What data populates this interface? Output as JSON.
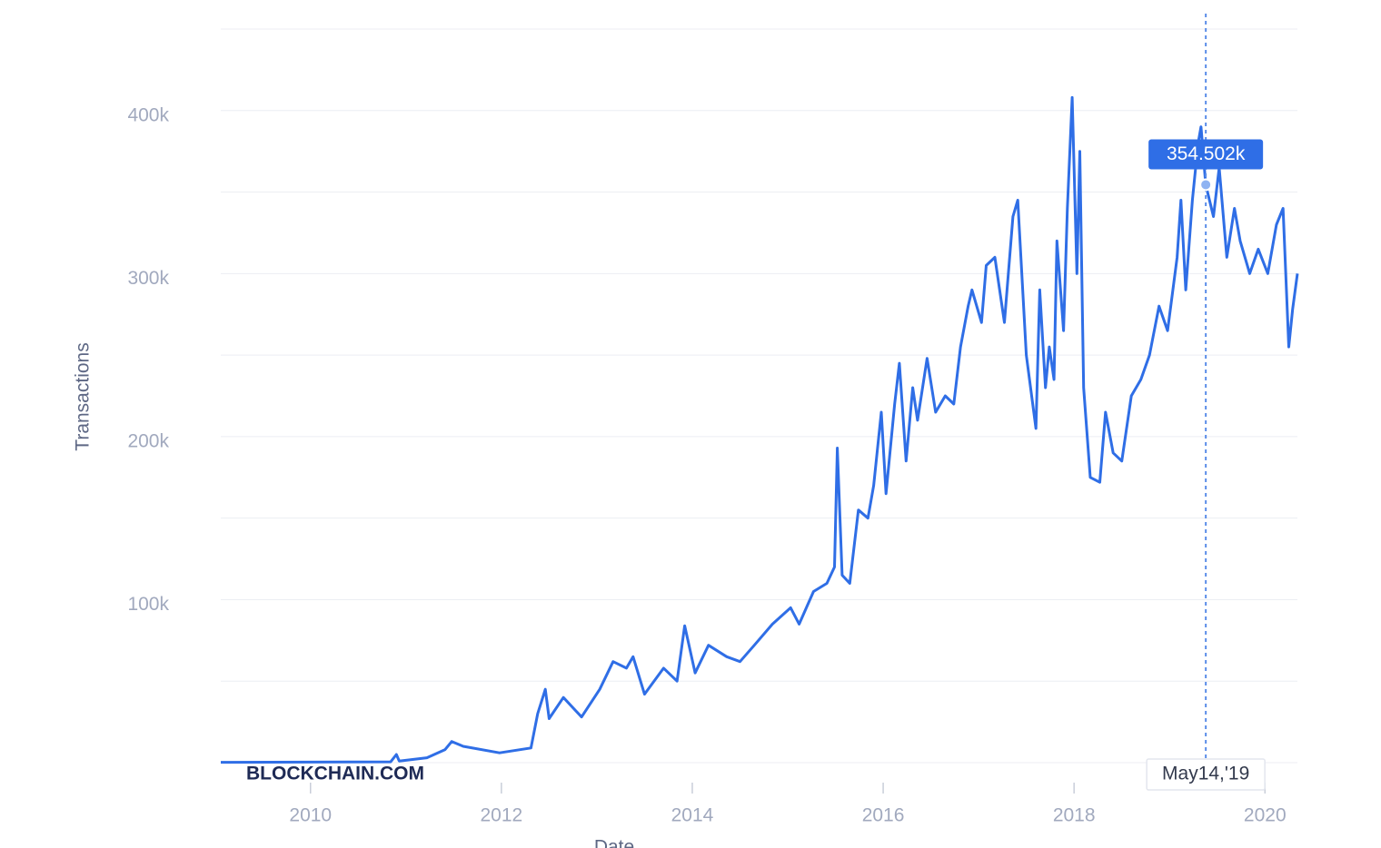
{
  "chart_data": {
    "type": "line",
    "y_title": "Transactions",
    "x_title": "Date",
    "watermark": "BLOCKCHAIN.COM",
    "color": "#2f6ee6",
    "xlim": [
      2009.06,
      2020.34
    ],
    "xticks": [
      2010,
      2012,
      2014,
      2016,
      2018,
      2020
    ],
    "ylim": [
      0,
      450000
    ],
    "yticks": [
      {
        "value": 100000,
        "label": "100k"
      },
      {
        "value": 200000,
        "label": "200k"
      },
      {
        "value": 300000,
        "label": "300k"
      },
      {
        "value": 400000,
        "label": "400k"
      }
    ],
    "ygrid": [
      0,
      50000,
      100000,
      150000,
      200000,
      250000,
      300000,
      350000,
      400000,
      450000
    ],
    "x": [
      2009.06,
      2010.84,
      2010.9,
      2010.93,
      2011.22,
      2011.41,
      2011.48,
      2011.6,
      2011.98,
      2012.31,
      2012.38,
      2012.46,
      2012.5,
      2012.65,
      2012.84,
      2013.03,
      2013.17,
      2013.31,
      2013.38,
      2013.5,
      2013.7,
      2013.84,
      2013.92,
      2014.03,
      2014.17,
      2014.36,
      2014.5,
      2014.65,
      2014.84,
      2015.03,
      2015.12,
      2015.27,
      2015.41,
      2015.49,
      2015.52,
      2015.57,
      2015.65,
      2015.74,
      2015.84,
      2015.9,
      2015.98,
      2016.03,
      2016.12,
      2016.17,
      2016.24,
      2016.31,
      2016.36,
      2016.46,
      2016.55,
      2016.65,
      2016.74,
      2016.81,
      2016.89,
      2016.93,
      2017.03,
      2017.08,
      2017.17,
      2017.27,
      2017.36,
      2017.41,
      2017.5,
      2017.6,
      2017.64,
      2017.7,
      2017.74,
      2017.79,
      2017.82,
      2017.89,
      2017.93,
      2017.98,
      2018.03,
      2018.06,
      2018.1,
      2018.17,
      2018.27,
      2018.33,
      2018.41,
      2018.5,
      2018.6,
      2018.7,
      2018.79,
      2018.89,
      2018.98,
      2019.08,
      2019.12,
      2019.17,
      2019.24,
      2019.3,
      2019.33,
      2019.38,
      2019.46,
      2019.52,
      2019.6,
      2019.68,
      2019.74,
      2019.84,
      2019.93,
      2020.03,
      2020.12,
      2020.19,
      2020.25,
      2020.29,
      2020.34
    ],
    "values": [
      200,
      500,
      5000,
      1000,
      3000,
      8000,
      13000,
      10000,
      6000,
      9000,
      30000,
      45000,
      27000,
      40000,
      28000,
      45000,
      62000,
      58000,
      65000,
      42000,
      58000,
      50000,
      84000,
      55000,
      72000,
      65000,
      62000,
      72000,
      85000,
      95000,
      85000,
      105000,
      110000,
      120000,
      193000,
      115000,
      110000,
      155000,
      150000,
      170000,
      215000,
      165000,
      220000,
      245000,
      185000,
      230000,
      210000,
      248000,
      215000,
      225000,
      220000,
      255000,
      280000,
      290000,
      270000,
      305000,
      310000,
      270000,
      335000,
      345000,
      250000,
      205000,
      290000,
      230000,
      255000,
      235000,
      320000,
      265000,
      340000,
      408000,
      300000,
      375000,
      230000,
      175000,
      172000,
      215000,
      190000,
      185000,
      225000,
      235000,
      250000,
      280000,
      265000,
      310000,
      345000,
      290000,
      345000,
      380000,
      390000,
      354502,
      335000,
      365000,
      310000,
      340000,
      320000,
      300000,
      315000,
      300000,
      330000,
      340000,
      255000,
      278000,
      300000
    ],
    "annotation": {
      "x": 2019.38,
      "value": 354502,
      "label": "354.502k",
      "date_label": "May14,'19"
    }
  }
}
